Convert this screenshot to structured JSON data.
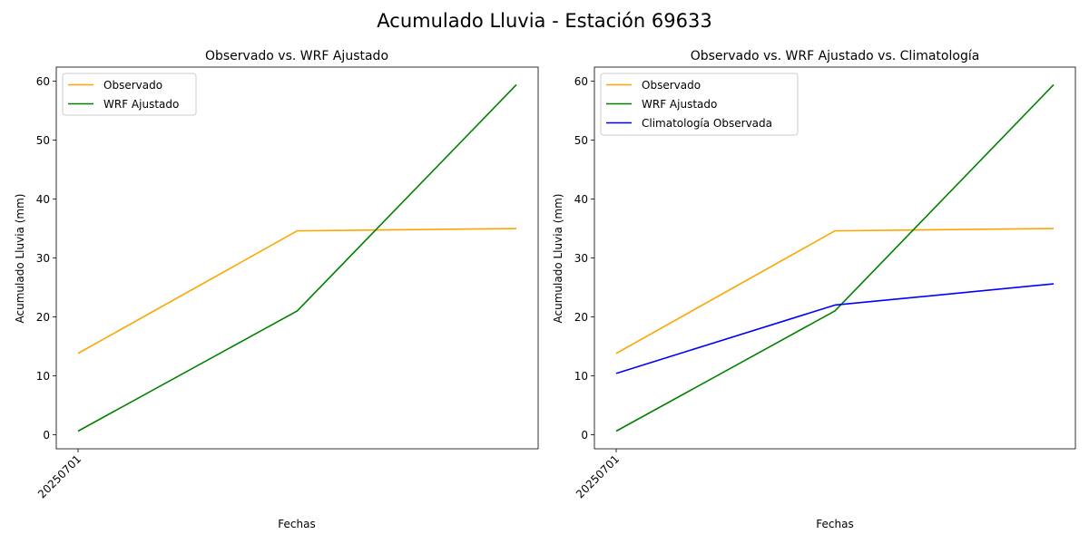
{
  "figure": {
    "suptitle": "Acumulado Lluvia - Estación 69633"
  },
  "chart_data": [
    {
      "type": "line",
      "title": "Observado vs. WRF Ajustado",
      "xlabel": "Fechas",
      "ylabel": "Acumulado Lluvia (mm)",
      "x": [
        0,
        1,
        2
      ],
      "xticks": [
        {
          "x": 0,
          "label": "20250701"
        }
      ],
      "ylim": [
        -2.4,
        62.4
      ],
      "yticks": [
        0,
        10,
        20,
        30,
        40,
        50,
        60
      ],
      "grid": false,
      "legend": "top-left",
      "series": [
        {
          "name": "Observado",
          "color": "#ffa500",
          "values": [
            13.8,
            34.6,
            35.0
          ]
        },
        {
          "name": "WRF Ajustado",
          "color": "#008000",
          "values": [
            0.6,
            21.0,
            59.4
          ]
        }
      ]
    },
    {
      "type": "line",
      "title": "Observado vs. WRF Ajustado vs. Climatología",
      "xlabel": "Fechas",
      "ylabel": "Acumulado Lluvia (mm)",
      "x": [
        0,
        1,
        2
      ],
      "xticks": [
        {
          "x": 0,
          "label": "20250701"
        }
      ],
      "ylim": [
        -2.4,
        62.4
      ],
      "yticks": [
        0,
        10,
        20,
        30,
        40,
        50,
        60
      ],
      "grid": false,
      "legend": "top-left",
      "series": [
        {
          "name": "Observado",
          "color": "#ffa500",
          "values": [
            13.8,
            34.6,
            35.0
          ]
        },
        {
          "name": "WRF Ajustado",
          "color": "#008000",
          "values": [
            0.6,
            21.0,
            59.4
          ]
        },
        {
          "name": "Climatología Observada",
          "color": "#0000ff",
          "values": [
            10.4,
            22.0,
            25.6
          ]
        }
      ]
    }
  ]
}
